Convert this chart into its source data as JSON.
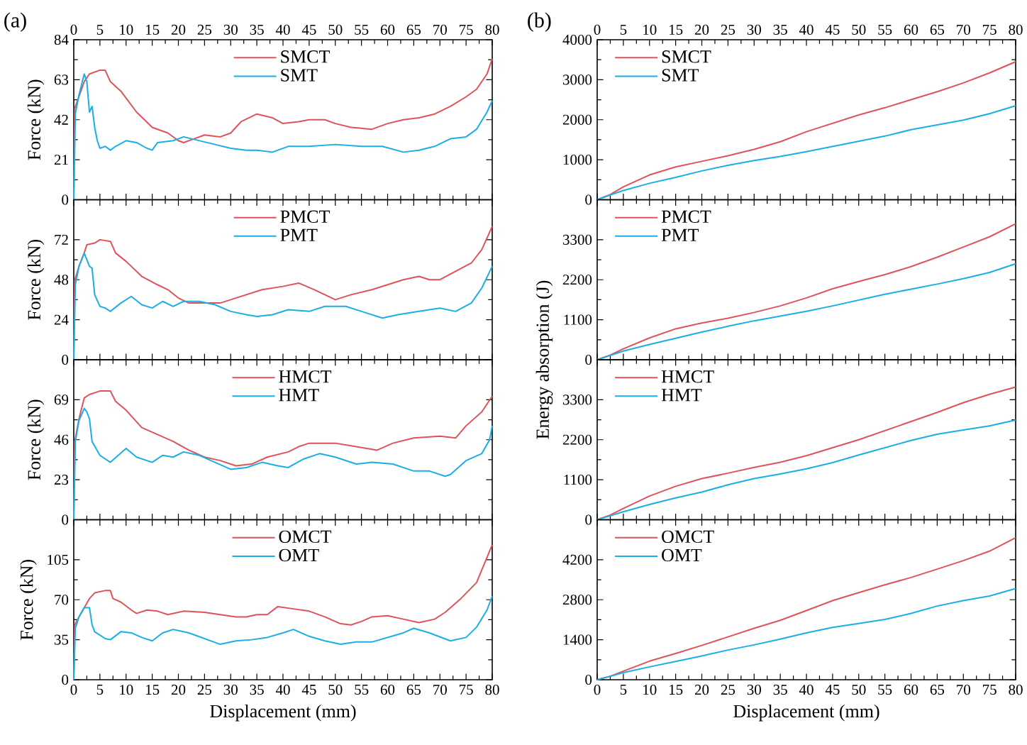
{
  "chart_data": [
    {
      "type": "line",
      "annotations": [
        "(a)"
      ],
      "ylabel": "Force (kN)",
      "xlim": [
        0,
        80
      ],
      "xticks": [
        0,
        5,
        10,
        15,
        20,
        25,
        30,
        35,
        40,
        45,
        50,
        55,
        60,
        65,
        70,
        75,
        80
      ],
      "ylim": [
        0,
        84
      ],
      "yticks": [
        0,
        21,
        42,
        63,
        84
      ],
      "legend": "top",
      "series": [
        {
          "name": "SMCT",
          "color": "#e0525a",
          "x": [
            0,
            0.2,
            2,
            2.5,
            3,
            5,
            6,
            7,
            9,
            12,
            15,
            18,
            20,
            21,
            23,
            25,
            28,
            30,
            32,
            35,
            38,
            40,
            43,
            45,
            48,
            50,
            53,
            57,
            60,
            63,
            66,
            69,
            72,
            75,
            77,
            79,
            80
          ],
          "values": [
            0,
            48,
            62,
            64,
            66,
            68,
            68,
            62,
            57,
            46,
            38,
            35,
            31,
            30,
            32,
            34,
            33,
            35,
            41,
            45,
            43,
            40,
            41,
            42,
            42,
            40,
            38,
            37,
            40,
            42,
            43,
            45,
            49,
            54,
            58,
            66,
            74
          ]
        },
        {
          "name": "SMT",
          "color": "#1aaee6",
          "x": [
            0,
            0.3,
            1,
            2,
            2.5,
            3,
            3.5,
            4,
            4.5,
            5,
            6,
            7,
            8,
            10,
            12,
            14,
            15,
            16,
            19,
            21,
            24,
            27,
            30,
            33,
            35,
            38,
            41,
            45,
            50,
            55,
            59,
            63,
            66,
            69,
            72,
            75,
            77,
            79,
            80
          ],
          "values": [
            0,
            45,
            55,
            66,
            62,
            46,
            49,
            38,
            31,
            27,
            28,
            26,
            28,
            31,
            30,
            27,
            26,
            30,
            31,
            33,
            31,
            29,
            27,
            26,
            26,
            25,
            28,
            28,
            29,
            28,
            28,
            25,
            26,
            28,
            32,
            33,
            37,
            46,
            52
          ]
        }
      ]
    },
    {
      "type": "line",
      "ylabel": "Force (kN)",
      "xlim": [
        0,
        80
      ],
      "xticks": [
        0,
        5,
        10,
        15,
        20,
        25,
        30,
        35,
        40,
        45,
        50,
        55,
        60,
        65,
        70,
        75,
        80
      ],
      "tick_labels": "y",
      "ylim": [
        0,
        96
      ],
      "yticks": [
        0,
        24,
        48,
        72
      ],
      "legend": "top",
      "series": [
        {
          "name": "PMCT",
          "color": "#e0525a",
          "x": [
            0,
            0.2,
            1,
            2,
            2.5,
            4,
            5,
            7,
            8,
            10,
            13,
            16,
            18,
            20,
            22,
            25,
            28,
            30,
            33,
            36,
            40,
            43,
            46,
            50,
            53,
            57,
            60,
            63,
            66,
            68,
            70,
            73,
            76,
            78,
            80
          ],
          "values": [
            0,
            48,
            56,
            64,
            69,
            70,
            72,
            71,
            64,
            59,
            50,
            45,
            42,
            37,
            34,
            34,
            34,
            36,
            39,
            42,
            44,
            46,
            42,
            36,
            39,
            42,
            45,
            48,
            50,
            48,
            48,
            53,
            58,
            66,
            80
          ]
        },
        {
          "name": "PMT",
          "color": "#1aaee6",
          "x": [
            0,
            0.3,
            1,
            2,
            3,
            3.5,
            4,
            5,
            6,
            7,
            9,
            11,
            13,
            15,
            17,
            19,
            21,
            24,
            27,
            30,
            33,
            35,
            38,
            41,
            45,
            48,
            52,
            55,
            59,
            62,
            66,
            70,
            73,
            76,
            78,
            80
          ],
          "values": [
            0,
            45,
            56,
            64,
            56,
            55,
            39,
            32,
            31,
            29,
            34,
            38,
            33,
            31,
            35,
            32,
            35,
            35,
            33,
            29,
            27,
            26,
            27,
            30,
            29,
            32,
            32,
            29,
            25,
            27,
            29,
            31,
            29,
            34,
            43,
            56
          ]
        }
      ]
    },
    {
      "type": "line",
      "ylabel": "Force (kN)",
      "xlim": [
        0,
        80
      ],
      "xticks": [
        0,
        5,
        10,
        15,
        20,
        25,
        30,
        35,
        40,
        45,
        50,
        55,
        60,
        65,
        70,
        75,
        80
      ],
      "tick_labels": "y",
      "ylim": [
        0,
        92
      ],
      "yticks": [
        0,
        23,
        46,
        69
      ],
      "legend": "top",
      "series": [
        {
          "name": "HMCT",
          "color": "#e0525a",
          "x": [
            0,
            0.2,
            1,
            2,
            3,
            5,
            7,
            8,
            10,
            13,
            16,
            19,
            22,
            25,
            28,
            31,
            34,
            37,
            41,
            43,
            45,
            50,
            54,
            58,
            61,
            65,
            70,
            73,
            75,
            78,
            80
          ],
          "values": [
            0,
            45,
            58,
            70,
            72,
            74,
            74,
            68,
            63,
            53,
            49,
            45,
            40,
            36,
            34,
            31,
            32,
            36,
            39,
            42,
            44,
            44,
            42,
            40,
            44,
            47,
            48,
            47,
            54,
            62,
            71
          ]
        },
        {
          "name": "HMT",
          "color": "#1aaee6",
          "x": [
            0,
            0.3,
            1,
            2,
            2.5,
            3,
            3.5,
            5,
            7,
            10,
            12,
            15,
            17,
            19,
            21,
            24,
            27,
            30,
            33,
            36,
            39,
            41,
            44,
            47,
            50,
            54,
            57,
            61,
            65,
            68,
            71,
            72,
            75,
            78,
            79.5,
            80
          ],
          "values": [
            0,
            45,
            57,
            64,
            62,
            58,
            45,
            37,
            33,
            41,
            36,
            33,
            37,
            36,
            39,
            37,
            33,
            29,
            30,
            33,
            31,
            30,
            35,
            38,
            36,
            32,
            33,
            32,
            28,
            28,
            25,
            26,
            34,
            38,
            46,
            54
          ]
        }
      ]
    },
    {
      "type": "line",
      "ylabel": "Force (kN)",
      "xlabel": "Displacement (mm)",
      "xlim": [
        0,
        80
      ],
      "xticks": [
        0,
        5,
        10,
        15,
        20,
        25,
        30,
        35,
        40,
        45,
        50,
        55,
        60,
        65,
        70,
        75,
        80
      ],
      "ylim": [
        0,
        140
      ],
      "yticks": [
        0,
        35,
        70,
        105
      ],
      "legend": "top",
      "series": [
        {
          "name": "OMCT",
          "color": "#e0525a",
          "x": [
            0,
            0.2,
            1,
            2,
            3,
            4,
            6,
            7,
            7.5,
            9,
            11,
            12,
            14,
            16,
            18,
            21,
            25,
            28,
            31,
            33,
            35,
            37,
            39,
            42,
            45,
            48,
            51,
            53,
            55,
            57,
            60,
            63,
            66,
            69,
            71,
            74,
            77,
            80
          ],
          "values": [
            0,
            48,
            55,
            63,
            71,
            76,
            78,
            78,
            71,
            68,
            61,
            58,
            61,
            60,
            57,
            60,
            59,
            57,
            55,
            55,
            57,
            57,
            64,
            62,
            60,
            55,
            49,
            48,
            51,
            55,
            56,
            53,
            50,
            53,
            59,
            71,
            85,
            118
          ]
        },
        {
          "name": "OMT",
          "color": "#1aaee6",
          "x": [
            0,
            0.3,
            1,
            2,
            3,
            3.5,
            4,
            6,
            7,
            9,
            11,
            13,
            15,
            17,
            19,
            22,
            25,
            28,
            31,
            34,
            37,
            40,
            42,
            45,
            48,
            51,
            54,
            57,
            60,
            63,
            65,
            68,
            72,
            75,
            77,
            79,
            80
          ],
          "values": [
            0,
            45,
            55,
            63,
            63,
            48,
            42,
            36,
            35,
            42,
            41,
            37,
            34,
            41,
            44,
            41,
            36,
            31,
            34,
            35,
            37,
            41,
            44,
            38,
            34,
            31,
            33,
            33,
            37,
            41,
            45,
            41,
            34,
            37,
            46,
            61,
            73
          ]
        }
      ]
    },
    {
      "type": "line",
      "annotations": [
        "(b)"
      ],
      "xlim": [
        0,
        80
      ],
      "xticks": [
        0,
        5,
        10,
        15,
        20,
        25,
        30,
        35,
        40,
        45,
        50,
        55,
        60,
        65,
        70,
        75,
        80
      ],
      "ylim": [
        0,
        4000
      ],
      "yticks": [
        0,
        1000,
        2000,
        3000,
        4000
      ],
      "legend": "top left",
      "series": [
        {
          "name": "SMCT",
          "color": "#e0525a",
          "x": [
            0,
            2.5,
            5,
            10,
            15,
            20,
            25,
            30,
            35,
            40,
            45,
            50,
            55,
            60,
            65,
            70,
            75,
            80
          ],
          "values": [
            0,
            130,
            320,
            620,
            820,
            960,
            1100,
            1260,
            1450,
            1700,
            1910,
            2120,
            2300,
            2500,
            2700,
            2920,
            3170,
            3450
          ]
        },
        {
          "name": "SMT",
          "color": "#1aaee6",
          "x": [
            0,
            2.5,
            5,
            10,
            15,
            20,
            25,
            30,
            35,
            40,
            45,
            50,
            55,
            60,
            65,
            70,
            75,
            80
          ],
          "values": [
            0,
            120,
            230,
            410,
            560,
            720,
            860,
            980,
            1080,
            1200,
            1330,
            1460,
            1590,
            1750,
            1870,
            1990,
            2150,
            2350
          ]
        }
      ]
    },
    {
      "type": "line",
      "ylabel": "Energy absorption (J)",
      "xlim": [
        0,
        80
      ],
      "xticks": [
        0,
        5,
        10,
        15,
        20,
        25,
        30,
        35,
        40,
        45,
        50,
        55,
        60,
        65,
        70,
        75,
        80
      ],
      "tick_labels": "y",
      "ylim": [
        0,
        4400
      ],
      "yticks": [
        0,
        1100,
        2200,
        3300
      ],
      "legend": "top left",
      "series": [
        {
          "name": "PMCT",
          "color": "#e0525a",
          "x": [
            0,
            2.5,
            5,
            10,
            15,
            20,
            25,
            30,
            35,
            40,
            45,
            50,
            55,
            60,
            65,
            70,
            75,
            80
          ],
          "values": [
            0,
            130,
            300,
            600,
            850,
            1010,
            1140,
            1300,
            1480,
            1700,
            1950,
            2150,
            2340,
            2560,
            2820,
            3100,
            3380,
            3740
          ]
        },
        {
          "name": "PMT",
          "color": "#1aaee6",
          "x": [
            0,
            2.5,
            5,
            10,
            15,
            20,
            25,
            30,
            35,
            40,
            45,
            50,
            55,
            60,
            65,
            70,
            75,
            80
          ],
          "values": [
            0,
            120,
            240,
            420,
            590,
            760,
            920,
            1070,
            1200,
            1330,
            1480,
            1640,
            1800,
            1940,
            2080,
            2230,
            2400,
            2640
          ]
        }
      ]
    },
    {
      "type": "line",
      "xlim": [
        0,
        80
      ],
      "xticks": [
        0,
        5,
        10,
        15,
        20,
        25,
        30,
        35,
        40,
        45,
        50,
        55,
        60,
        65,
        70,
        75,
        80
      ],
      "tick_labels": "y",
      "ylim": [
        0,
        4400
      ],
      "yticks": [
        0,
        1100,
        2200,
        3300
      ],
      "legend": "top left",
      "series": [
        {
          "name": "HMCT",
          "color": "#e0525a",
          "x": [
            0,
            2.5,
            5,
            10,
            15,
            20,
            25,
            30,
            35,
            40,
            45,
            50,
            55,
            60,
            65,
            70,
            75,
            80
          ],
          "values": [
            0,
            130,
            310,
            650,
            920,
            1130,
            1280,
            1440,
            1580,
            1760,
            1980,
            2200,
            2450,
            2700,
            2950,
            3220,
            3450,
            3650
          ]
        },
        {
          "name": "HMT",
          "color": "#1aaee6",
          "x": [
            0,
            2.5,
            5,
            10,
            15,
            20,
            25,
            30,
            35,
            40,
            45,
            50,
            55,
            60,
            65,
            70,
            75,
            80
          ],
          "values": [
            0,
            110,
            220,
            420,
            600,
            760,
            960,
            1130,
            1260,
            1400,
            1570,
            1780,
            1980,
            2180,
            2350,
            2470,
            2580,
            2740
          ]
        }
      ]
    },
    {
      "type": "line",
      "xlabel": "Displacement (mm)",
      "xlim": [
        0,
        80
      ],
      "xticks": [
        0,
        5,
        10,
        15,
        20,
        25,
        30,
        35,
        40,
        45,
        50,
        55,
        60,
        65,
        70,
        75,
        80
      ],
      "ylim": [
        0,
        5600
      ],
      "yticks": [
        0,
        1400,
        2800,
        4200
      ],
      "legend": "top left",
      "series": [
        {
          "name": "OMCT",
          "color": "#e0525a",
          "x": [
            0,
            2.5,
            5,
            10,
            15,
            20,
            25,
            30,
            35,
            40,
            45,
            50,
            55,
            60,
            65,
            70,
            75,
            80
          ],
          "values": [
            0,
            120,
            300,
            650,
            920,
            1200,
            1500,
            1800,
            2080,
            2420,
            2770,
            3050,
            3320,
            3580,
            3870,
            4170,
            4500,
            4970
          ]
        },
        {
          "name": "OMT",
          "color": "#1aaee6",
          "x": [
            0,
            2.5,
            5,
            10,
            15,
            20,
            25,
            30,
            35,
            40,
            45,
            50,
            55,
            60,
            65,
            70,
            75,
            80
          ],
          "values": [
            0,
            120,
            250,
            450,
            640,
            830,
            1040,
            1220,
            1420,
            1640,
            1830,
            1970,
            2110,
            2320,
            2580,
            2770,
            2930,
            3190
          ]
        }
      ]
    }
  ]
}
